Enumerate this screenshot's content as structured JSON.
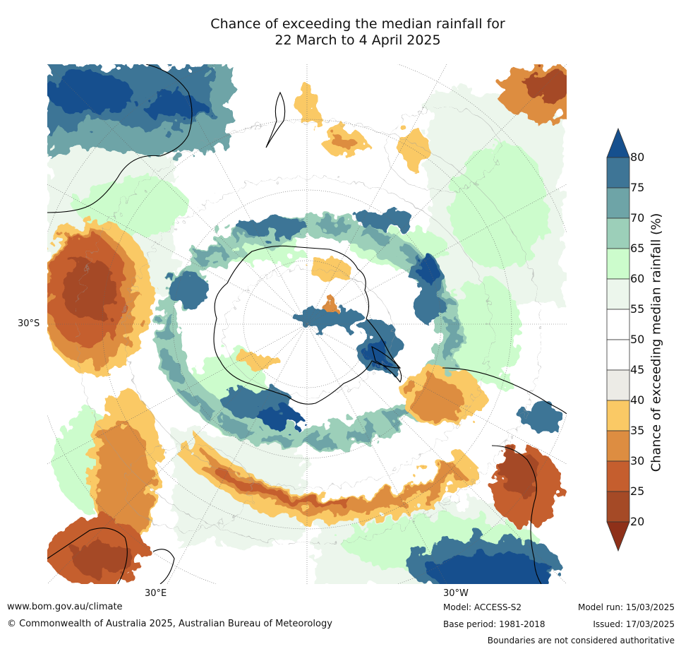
{
  "title": {
    "line1": "Chance of exceeding the median rainfall for",
    "line2": "22 March to 4 April 2025"
  },
  "map": {
    "axis_labels": {
      "left_lat": "30°S",
      "bottom_left_lon": "30°E",
      "bottom_right_lon": "30°W"
    }
  },
  "colorbar": {
    "title": "Chance of exceeding median rainfall (%)",
    "ticks": [
      "80",
      "75",
      "70",
      "65",
      "60",
      "55",
      "50",
      "45",
      "40",
      "35",
      "30",
      "25",
      "20"
    ],
    "colors": {
      "gt80": "#16508e",
      "75_80": "#3e7596",
      "70_75": "#6ea4a7",
      "65_70": "#9ccfb9",
      "60_65": "#ccfccc",
      "55_60": "#ecf6ec",
      "50_55": "#ffffff",
      "45_50": "#ffffff",
      "40_45": "#ecebe6",
      "35_40": "#fac965",
      "30_35": "#dd8d41",
      "25_30": "#c55e2e",
      "20_25": "#a54a26",
      "lt20": "#8e3019"
    }
  },
  "footer": {
    "website": "www.bom.gov.au/climate",
    "copyright": "© Commonwealth of Australia 2025, Australian Bureau of Meteorology",
    "model": "Model: ACCESS-S2",
    "base_period": "Base period: 1981-2018",
    "model_run": "Model run: 15/03/2025",
    "issued": "Issued: 17/03/2025",
    "disclaimer": "Boundaries are not considered authoritative"
  }
}
